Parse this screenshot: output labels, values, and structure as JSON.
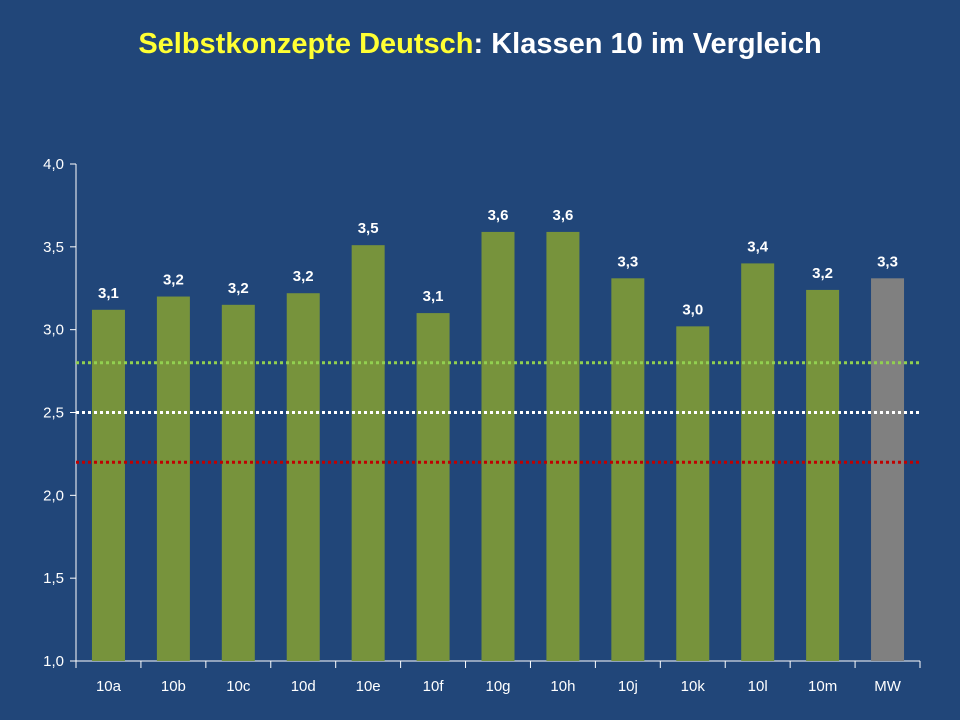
{
  "title": {
    "highlight": "Selbstkonzepte Deutsch",
    "rest": ": Klassen 10 im Vergleich"
  },
  "colors": {
    "background": "#214679",
    "bar": "#77933c",
    "bar_mean": "#808080",
    "title_highlight": "#ffff33",
    "ref_green": "#92d050",
    "ref_white": "#ffffff",
    "ref_red": "#c00000"
  },
  "chart_data": {
    "type": "bar",
    "title": "Selbstkonzepte Deutsch: Klassen 10 im Vergleich",
    "xlabel": "",
    "ylabel": "",
    "ylim": [
      1.0,
      4.0
    ],
    "yticks": [
      "1,0",
      "1,5",
      "2,0",
      "2,5",
      "3,0",
      "3,5",
      "4,0"
    ],
    "ytick_values": [
      1.0,
      1.5,
      2.0,
      2.5,
      3.0,
      3.5,
      4.0
    ],
    "categories": [
      "10a",
      "10b",
      "10c",
      "10d",
      "10e",
      "10f",
      "10g",
      "10h",
      "10j",
      "10k",
      "10l",
      "10m",
      "MW"
    ],
    "values": [
      3.12,
      3.2,
      3.15,
      3.22,
      3.51,
      3.1,
      3.59,
      3.59,
      3.31,
      3.02,
      3.4,
      3.24,
      3.31
    ],
    "data_labels": [
      "3,1",
      "3,2",
      "3,2",
      "3,2",
      "3,5",
      "3,1",
      "3,6",
      "3,6",
      "3,3",
      "3,0",
      "3,4",
      "3,2",
      "3,3"
    ],
    "highlight_category": "MW",
    "reference_lines": [
      {
        "value": 2.8,
        "color": "#92d050",
        "style": "dotted"
      },
      {
        "value": 2.5,
        "color": "#ffffff",
        "style": "dotted"
      },
      {
        "value": 2.2,
        "color": "#c00000",
        "style": "dotted"
      }
    ],
    "grid": false,
    "legend": "none"
  }
}
